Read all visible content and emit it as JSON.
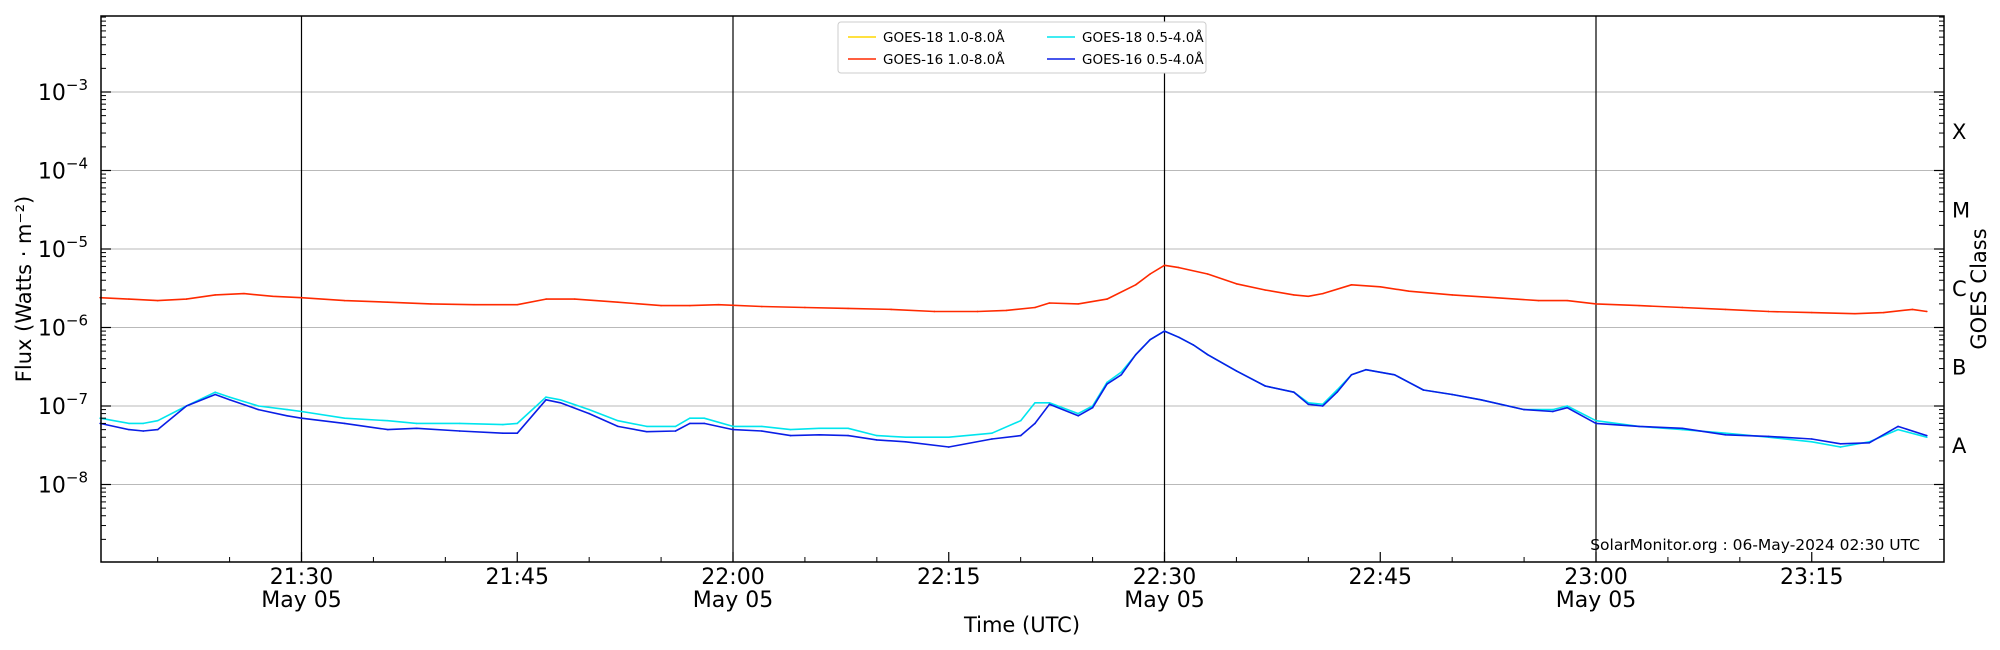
{
  "chart_data": {
    "type": "line",
    "xlabel": "Time (UTC)",
    "ylabel": "Flux (Watts · m⁻²)",
    "ylabel_right": "GOES Class",
    "y_scale": "log",
    "ylim": [
      1e-09,
      0.01
    ],
    "xlim": [
      "21:16",
      "23:24"
    ],
    "grid": "horizontal at each decade; vertical lines at 21:30, 22:00, 22:30, 23:00",
    "legend_position": "top-center",
    "y_ticks": [
      {
        "value": 1e-08,
        "base": "10",
        "exp": "−8"
      },
      {
        "value": 1e-07,
        "base": "10",
        "exp": "−7"
      },
      {
        "value": 1e-06,
        "base": "10",
        "exp": "−6"
      },
      {
        "value": 1e-05,
        "base": "10",
        "exp": "−5"
      },
      {
        "value": 0.0001,
        "base": "10",
        "exp": "−4"
      },
      {
        "value": 0.001,
        "base": "10",
        "exp": "−3"
      }
    ],
    "x_ticks": [
      {
        "time": "21:30",
        "date": "May 05"
      },
      {
        "time": "21:45",
        "date": ""
      },
      {
        "time": "22:00",
        "date": "May 05"
      },
      {
        "time": "22:15",
        "date": ""
      },
      {
        "time": "22:30",
        "date": "May 05"
      },
      {
        "time": "22:45",
        "date": ""
      },
      {
        "time": "23:00",
        "date": "May 05"
      },
      {
        "time": "23:15",
        "date": ""
      }
    ],
    "goes_classes": [
      {
        "label": "A",
        "value": 3.2e-08
      },
      {
        "label": "B",
        "value": 3.2e-07
      },
      {
        "label": "C",
        "value": 3.2e-06
      },
      {
        "label": "M",
        "value": 3.2e-05
      },
      {
        "label": "X",
        "value": 0.00032
      }
    ],
    "annotation": "SolarMonitor.org : 06-May-2024 02:30 UTC",
    "series": [
      {
        "name": "GOES-18 1.0-8.0Å",
        "color": "#ffd700",
        "x": [],
        "y": []
      },
      {
        "name": "GOES-16 1.0-8.0Å",
        "color": "#ff2a00",
        "x": [
          "21:16",
          "21:18",
          "21:20",
          "21:22",
          "21:24",
          "21:26",
          "21:28",
          "21:30",
          "21:33",
          "21:36",
          "21:39",
          "21:42",
          "21:45",
          "21:47",
          "21:49",
          "21:52",
          "21:55",
          "21:57",
          "21:59",
          "22:02",
          "22:05",
          "22:08",
          "22:11",
          "22:14",
          "22:17",
          "22:19",
          "22:21",
          "22:22",
          "22:24",
          "22:26",
          "22:28",
          "22:29",
          "22:30",
          "22:31",
          "22:33",
          "22:35",
          "22:37",
          "22:39",
          "22:40",
          "22:41",
          "22:43",
          "22:45",
          "22:47",
          "22:50",
          "22:53",
          "22:56",
          "22:58",
          "23:00",
          "23:03",
          "23:06",
          "23:09",
          "23:12",
          "23:15",
          "23:18",
          "23:20",
          "23:22",
          "23:23"
        ],
        "y": [
          2.4e-06,
          2.3e-06,
          2.2e-06,
          2.3e-06,
          2.6e-06,
          2.7e-06,
          2.5e-06,
          2.4e-06,
          2.2e-06,
          2.1e-06,
          2e-06,
          1.95e-06,
          1.95e-06,
          2.3e-06,
          2.3e-06,
          2.1e-06,
          1.9e-06,
          1.9e-06,
          1.95e-06,
          1.85e-06,
          1.8e-06,
          1.75e-06,
          1.7e-06,
          1.6e-06,
          1.6e-06,
          1.65e-06,
          1.8e-06,
          2.05e-06,
          2e-06,
          2.3e-06,
          3.5e-06,
          4.8e-06,
          6.2e-06,
          5.8e-06,
          4.8e-06,
          3.6e-06,
          3e-06,
          2.6e-06,
          2.5e-06,
          2.7e-06,
          3.5e-06,
          3.3e-06,
          2.9e-06,
          2.6e-06,
          2.4e-06,
          2.2e-06,
          2.2e-06,
          2e-06,
          1.9e-06,
          1.8e-06,
          1.7e-06,
          1.6e-06,
          1.55e-06,
          1.5e-06,
          1.55e-06,
          1.7e-06,
          1.6e-06
        ]
      },
      {
        "name": "GOES-18 0.5-4.0Å",
        "color": "#00e5ee",
        "x": [
          "21:16",
          "21:18",
          "21:19",
          "21:20",
          "21:22",
          "21:24",
          "21:25",
          "21:27",
          "21:29",
          "21:30",
          "21:33",
          "21:36",
          "21:38",
          "21:41",
          "21:44",
          "21:45",
          "21:47",
          "21:48",
          "21:50",
          "21:52",
          "21:54",
          "21:56",
          "21:57",
          "21:58",
          "22:00",
          "22:02",
          "22:04",
          "22:06",
          "22:08",
          "22:10",
          "22:12",
          "22:15",
          "22:18",
          "22:20",
          "22:21",
          "22:22",
          "22:24",
          "22:25",
          "22:26",
          "22:27",
          "22:28",
          "22:29",
          "22:30",
          "22:31",
          "22:32",
          "22:33",
          "22:35",
          "22:37",
          "22:39",
          "22:40",
          "22:41",
          "22:42",
          "22:43",
          "22:44",
          "22:46",
          "22:48",
          "22:50",
          "22:52",
          "22:55",
          "22:57",
          "22:58",
          "23:00",
          "23:03",
          "23:06",
          "23:09",
          "23:12",
          "23:15",
          "23:17",
          "23:19",
          "23:21",
          "23:23"
        ],
        "y": [
          7e-08,
          6e-08,
          6e-08,
          6.5e-08,
          1e-07,
          1.5e-07,
          1.3e-07,
          1e-07,
          9e-08,
          8.5e-08,
          7e-08,
          6.5e-08,
          6e-08,
          6e-08,
          5.8e-08,
          6e-08,
          1.3e-07,
          1.2e-07,
          9e-08,
          6.5e-08,
          5.5e-08,
          5.5e-08,
          7e-08,
          7e-08,
          5.5e-08,
          5.5e-08,
          5e-08,
          5.2e-08,
          5.2e-08,
          4.2e-08,
          4e-08,
          4e-08,
          4.5e-08,
          6.5e-08,
          1.1e-07,
          1.1e-07,
          8e-08,
          1e-07,
          2e-07,
          2.7e-07,
          4.5e-07,
          7e-07,
          9e-07,
          7.5e-07,
          6e-07,
          4.5e-07,
          2.8e-07,
          1.8e-07,
          1.5e-07,
          1.1e-07,
          1.05e-07,
          1.6e-07,
          2.5e-07,
          2.9e-07,
          2.5e-07,
          1.6e-07,
          1.4e-07,
          1.2e-07,
          9e-08,
          9e-08,
          1e-07,
          6.5e-08,
          5.5e-08,
          5e-08,
          4.5e-08,
          4e-08,
          3.5e-08,
          3e-08,
          3.5e-08,
          5e-08,
          4e-08
        ]
      },
      {
        "name": "GOES-16 0.5-4.0Å",
        "color": "#0a1ee6",
        "x": [
          "21:16",
          "21:18",
          "21:19",
          "21:20",
          "21:22",
          "21:24",
          "21:25",
          "21:27",
          "21:29",
          "21:30",
          "21:33",
          "21:36",
          "21:38",
          "21:41",
          "21:44",
          "21:45",
          "21:47",
          "21:48",
          "21:50",
          "21:52",
          "21:54",
          "21:56",
          "21:57",
          "21:58",
          "22:00",
          "22:02",
          "22:04",
          "22:06",
          "22:08",
          "22:10",
          "22:12",
          "22:15",
          "22:18",
          "22:20",
          "22:21",
          "22:22",
          "22:24",
          "22:25",
          "22:26",
          "22:27",
          "22:28",
          "22:29",
          "22:30",
          "22:31",
          "22:32",
          "22:33",
          "22:35",
          "22:37",
          "22:39",
          "22:40",
          "22:41",
          "22:42",
          "22:43",
          "22:44",
          "22:46",
          "22:48",
          "22:50",
          "22:52",
          "22:55",
          "22:57",
          "22:58",
          "23:00",
          "23:03",
          "23:06",
          "23:09",
          "23:12",
          "23:15",
          "23:17",
          "23:19",
          "23:21",
          "23:23"
        ],
        "y": [
          6e-08,
          5e-08,
          4.8e-08,
          5e-08,
          1e-07,
          1.4e-07,
          1.2e-07,
          9e-08,
          7.5e-08,
          7e-08,
          6e-08,
          5e-08,
          5.2e-08,
          4.8e-08,
          4.5e-08,
          4.5e-08,
          1.2e-07,
          1.1e-07,
          8e-08,
          5.5e-08,
          4.7e-08,
          4.8e-08,
          6e-08,
          6e-08,
          5e-08,
          4.8e-08,
          4.2e-08,
          4.3e-08,
          4.2e-08,
          3.7e-08,
          3.5e-08,
          3e-08,
          3.8e-08,
          4.2e-08,
          6e-08,
          1.05e-07,
          7.5e-08,
          9.5e-08,
          1.9e-07,
          2.5e-07,
          4.5e-07,
          7e-07,
          9e-07,
          7.5e-07,
          6e-07,
          4.5e-07,
          2.8e-07,
          1.8e-07,
          1.5e-07,
          1.05e-07,
          1e-07,
          1.5e-07,
          2.5e-07,
          2.9e-07,
          2.5e-07,
          1.6e-07,
          1.4e-07,
          1.2e-07,
          9e-08,
          8.5e-08,
          9.5e-08,
          6e-08,
          5.5e-08,
          5.2e-08,
          4.3e-08,
          4.1e-08,
          3.8e-08,
          3.3e-08,
          3.4e-08,
          5.5e-08,
          4.2e-08
        ]
      }
    ]
  }
}
